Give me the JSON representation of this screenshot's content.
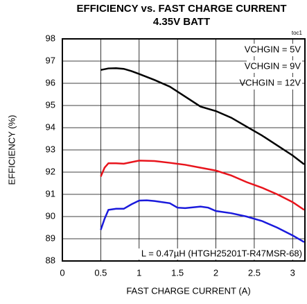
{
  "chart_data": {
    "type": "line",
    "title": "EFFICIENCY vs. FAST CHARGE CURRENT",
    "subtitle": "4.35V BATT",
    "x_label": "FAST CHARGE CURRENT (A)",
    "y_label": "EFFICIENCY (%)",
    "annotations": [
      "toc1",
      "L = 0.47µH (HTGH25201T-R47MSR-68)"
    ],
    "xlim": [
      0,
      3.16
    ],
    "ylim": [
      88,
      98
    ],
    "xticks": [
      0,
      0.5,
      1,
      1.5,
      2,
      2.5,
      3
    ],
    "yticks": [
      88,
      89,
      90,
      91,
      92,
      93,
      94,
      95,
      96,
      97,
      98
    ],
    "grid": true,
    "legend": "top-right",
    "series": [
      {
        "name": "VCHGIN = 5V",
        "color": "#000000",
        "x": [
          0.5,
          0.6,
          0.7,
          0.8,
          0.9,
          1.0,
          1.2,
          1.4,
          1.6,
          1.8,
          2.0,
          2.2,
          2.4,
          2.6,
          2.8,
          3.0,
          3.15
        ],
        "values": [
          96.6,
          96.67,
          96.68,
          96.65,
          96.55,
          96.42,
          96.15,
          95.85,
          95.4,
          94.95,
          94.75,
          94.45,
          94.05,
          93.65,
          93.2,
          92.75,
          92.35
        ]
      },
      {
        "name": "VCHGIN = 9V",
        "color": "#e8141c",
        "x": [
          0.5,
          0.55,
          0.6,
          0.7,
          0.8,
          0.9,
          1.0,
          1.2,
          1.4,
          1.6,
          1.8,
          2.0,
          2.2,
          2.4,
          2.6,
          2.8,
          3.0,
          3.15
        ],
        "values": [
          91.8,
          92.2,
          92.4,
          92.4,
          92.38,
          92.45,
          92.52,
          92.5,
          92.42,
          92.33,
          92.2,
          92.07,
          91.85,
          91.55,
          91.3,
          91.0,
          90.65,
          90.3
        ]
      },
      {
        "name": "VCHGIN = 12V",
        "color": "#1a1adc",
        "x": [
          0.5,
          0.55,
          0.6,
          0.7,
          0.8,
          0.9,
          1.0,
          1.1,
          1.2,
          1.4,
          1.5,
          1.6,
          1.8,
          1.9,
          2.0,
          2.2,
          2.4,
          2.6,
          2.8,
          3.0,
          3.15
        ],
        "values": [
          89.4,
          89.9,
          90.3,
          90.35,
          90.35,
          90.55,
          90.72,
          90.73,
          90.7,
          90.6,
          90.4,
          90.38,
          90.45,
          90.4,
          90.25,
          90.15,
          90.0,
          89.8,
          89.5,
          89.15,
          88.85
        ]
      }
    ]
  }
}
